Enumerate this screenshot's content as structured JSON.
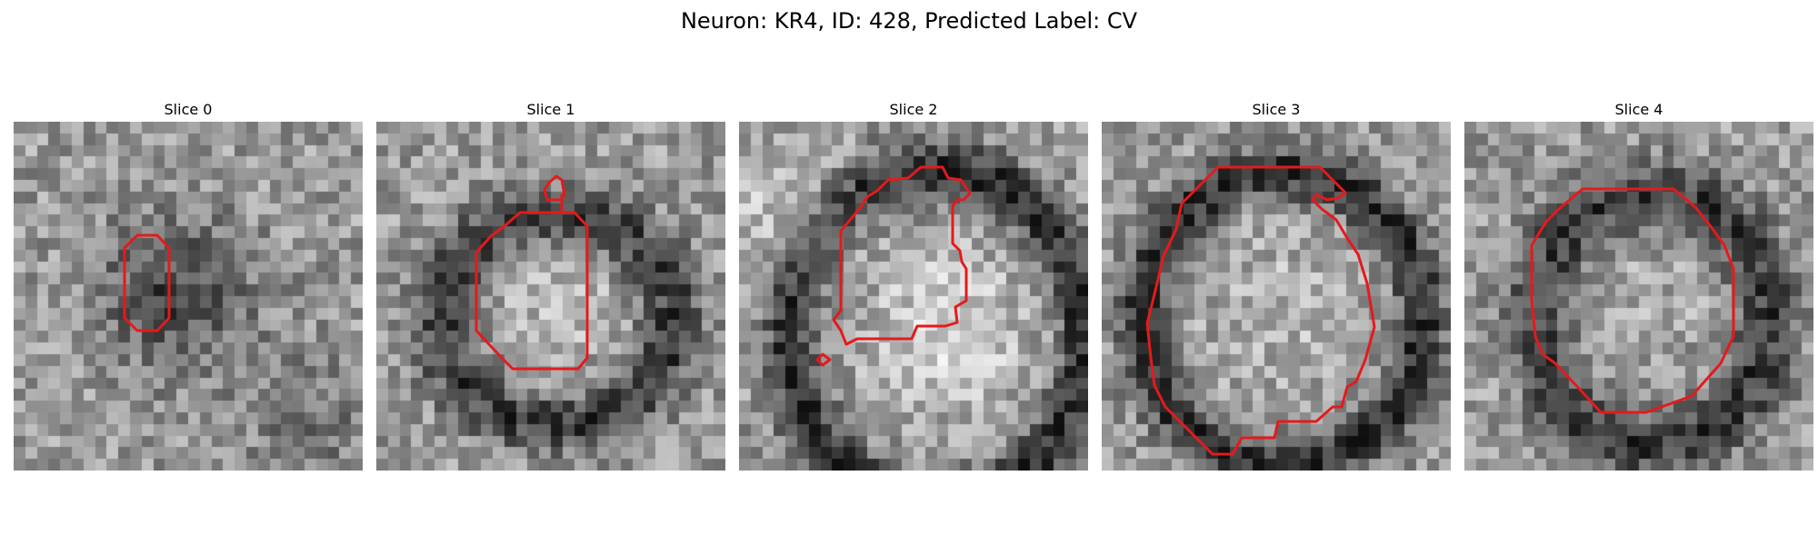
{
  "figure": {
    "title": "Neuron: KR4, ID: 428, Predicted Label: CV"
  },
  "panels": [
    {
      "title": "Slice 0"
    },
    {
      "title": "Slice 1"
    },
    {
      "title": "Slice 2"
    },
    {
      "title": "Slice 3"
    },
    {
      "title": "Slice 4"
    }
  ],
  "colors": {
    "contour": "#e41a1c",
    "background": "#ffffff"
  },
  "colormap": "gray"
}
